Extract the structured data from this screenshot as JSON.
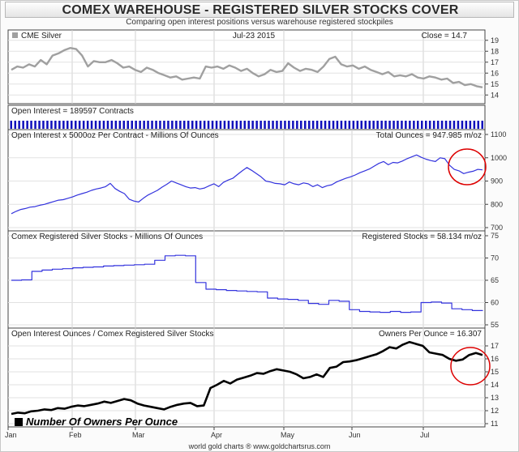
{
  "header": {
    "title": "COMEX WAREHOUSE - REGISTERED SILVER STOCKS COVER",
    "subtitle": "Comparing open interest positions versus warehouse registered stockpiles"
  },
  "footer": "world gold charts ® www.goldchartsrus.com",
  "legend_label": "Number Of Owners Per Ounce",
  "colors": {
    "grey_line": "#a0a0a0",
    "blue_line": "#3333dd",
    "oi_bars": "#1010bb",
    "black_line": "#000000",
    "annotation": "#dd0000"
  },
  "x_labels": [
    "Jan",
    "Feb",
    "Mar",
    "Apr",
    "May",
    "Jun",
    "Jul"
  ],
  "chart_data": [
    {
      "type": "line",
      "title": "CME Silver",
      "date_label": "Jul-23 2015",
      "value_label": "Close = 14.7",
      "ylim": [
        13.5,
        19.5
      ],
      "yticks": [
        14,
        15,
        16,
        17,
        18,
        19
      ],
      "series": [
        {
          "name": "CME Silver",
          "values": [
            16.3,
            16.6,
            16.5,
            16.8,
            16.6,
            17.2,
            16.8,
            17.6,
            17.8,
            18.1,
            18.3,
            18.2,
            17.6,
            16.6,
            17.1,
            17.0,
            17.0,
            17.2,
            16.9,
            16.5,
            16.6,
            16.3,
            16.1,
            16.5,
            16.3,
            16.0,
            15.8,
            15.6,
            15.7,
            15.4,
            15.5,
            15.6,
            15.5,
            16.6,
            16.5,
            16.6,
            16.4,
            16.7,
            16.5,
            16.2,
            16.4,
            16.0,
            15.7,
            15.9,
            16.3,
            16.1,
            16.2,
            16.9,
            16.5,
            16.2,
            16.4,
            16.3,
            16.1,
            16.6,
            17.3,
            17.5,
            16.8,
            16.6,
            16.7,
            16.4,
            16.6,
            16.3,
            16.1,
            15.9,
            16.1,
            15.7,
            15.8,
            15.7,
            15.9,
            15.6,
            15.5,
            15.7,
            15.6,
            15.4,
            15.5,
            15.1,
            15.2,
            14.9,
            15.0,
            14.8,
            14.7
          ]
        }
      ]
    },
    {
      "type": "bar",
      "title": "Open Interest = 189597 Contracts",
      "series": [
        {
          "name": "Open Interest"
        }
      ]
    },
    {
      "type": "line",
      "title": "Open Interest x 5000oz Per Contract - Millions Of Ounces",
      "value_label": "Total Ounces = 947.985 m/oz",
      "ylim": [
        700,
        1100
      ],
      "yticks": [
        700,
        800,
        900,
        1000,
        1100
      ],
      "series": [
        {
          "name": "Total Ounces",
          "values": [
            760,
            770,
            778,
            782,
            788,
            790,
            796,
            800,
            806,
            812,
            818,
            820,
            826,
            832,
            840,
            846,
            852,
            860,
            866,
            870,
            876,
            890,
            868,
            856,
            846,
            822,
            814,
            810,
            826,
            840,
            850,
            860,
            874,
            886,
            900,
            892,
            884,
            876,
            870,
            872,
            866,
            870,
            880,
            888,
            876,
            894,
            904,
            912,
            928,
            944,
            958,
            946,
            932,
            918,
            900,
            896,
            890,
            888,
            884,
            896,
            888,
            884,
            892,
            888,
            876,
            884,
            872,
            880,
            884,
            896,
            904,
            912,
            918,
            926,
            936,
            944,
            952,
            964,
            976,
            984,
            970,
            980,
            978,
            986,
            996,
            1004,
            1012,
            1002,
            994,
            988,
            984,
            1000,
            996,
            968,
            950,
            944,
            932,
            938,
            942,
            950,
            948
          ]
        }
      ]
    },
    {
      "type": "line",
      "title": "Comex Registered Silver Stocks - Millions Of Ounces",
      "value_label": "Registered Stocks = 58.134 m/oz",
      "ylim": [
        55,
        75
      ],
      "yticks": [
        55,
        60,
        65,
        70,
        75
      ],
      "series": [
        {
          "name": "Registered Stocks",
          "values": [
            65.0,
            65.1,
            67.0,
            67.3,
            67.5,
            67.6,
            67.8,
            67.9,
            68.0,
            68.2,
            68.3,
            68.4,
            68.5,
            68.6,
            69.5,
            70.5,
            70.6,
            70.5,
            64.5,
            63.0,
            62.9,
            62.7,
            62.6,
            62.5,
            62.4,
            61.0,
            60.8,
            60.7,
            60.5,
            59.8,
            59.6,
            60.5,
            60.3,
            58.4,
            58.0,
            57.9,
            57.8,
            58.0,
            57.8,
            57.9,
            60.0,
            60.1,
            59.9,
            58.6,
            58.4,
            58.2,
            58.1
          ]
        }
      ]
    },
    {
      "type": "line",
      "title": "Open Interest Ounces / Comex Registered Silver Stocks",
      "value_label": "Owners Per Ounce = 16.307",
      "ylim": [
        11,
        18
      ],
      "yticks": [
        11,
        12,
        13,
        14,
        15,
        16,
        17
      ],
      "series": [
        {
          "name": "Owners Per Ounce",
          "values": [
            11.75,
            11.85,
            11.8,
            11.95,
            12.0,
            12.1,
            12.05,
            12.2,
            12.15,
            12.3,
            12.4,
            12.35,
            12.45,
            12.55,
            12.7,
            12.6,
            12.75,
            12.9,
            12.8,
            12.55,
            12.4,
            12.3,
            12.2,
            12.1,
            12.3,
            12.45,
            12.55,
            12.6,
            12.35,
            12.4,
            13.75,
            14.0,
            14.3,
            14.1,
            14.4,
            14.55,
            14.7,
            14.9,
            14.85,
            15.05,
            15.2,
            15.1,
            15.0,
            14.8,
            14.5,
            14.6,
            14.8,
            14.6,
            15.3,
            15.4,
            15.75,
            15.8,
            15.9,
            16.05,
            16.2,
            16.35,
            16.6,
            16.9,
            16.8,
            17.1,
            17.3,
            17.15,
            17.0,
            16.5,
            16.4,
            16.3,
            16.0,
            15.85,
            15.95,
            16.3,
            16.45,
            16.3
          ]
        }
      ]
    }
  ]
}
